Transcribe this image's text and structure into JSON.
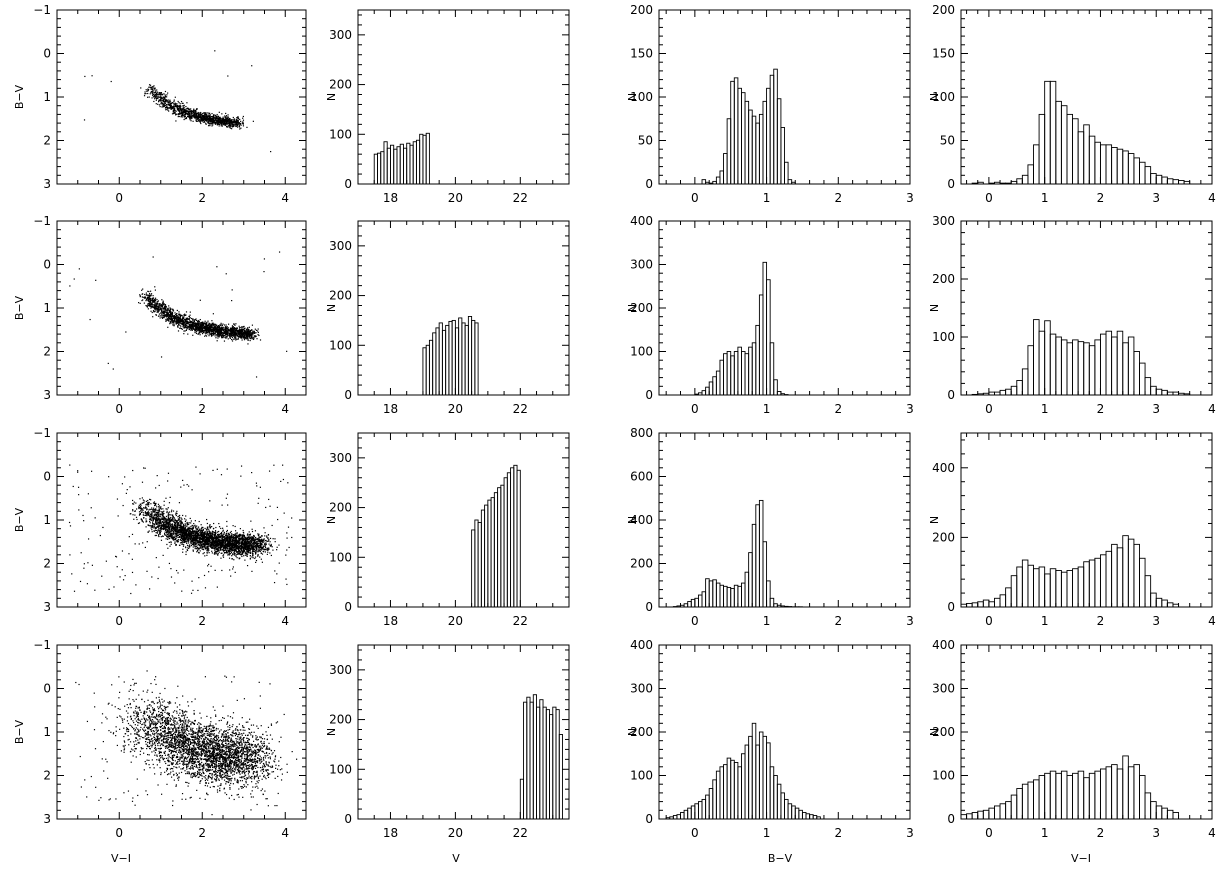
{
  "figure": {
    "column_xlabels": [
      "V−I",
      "V",
      "B−V",
      "V−I"
    ],
    "row_ylabels": [
      "B−V",
      "N",
      "N",
      "N"
    ]
  },
  "chart_data": [
    {
      "type": "scatter",
      "row": 1,
      "col": 1,
      "xlabel": "",
      "ylabel": "B−V",
      "xlim": [
        -1.5,
        4.5
      ],
      "ylim": [
        3,
        -1
      ],
      "xticks": [
        0,
        2,
        4
      ],
      "yticks": [
        -1,
        0,
        1,
        2,
        3
      ],
      "points_desc": "narrow diagonal sequence from (0.7,0.6) to (2.9,1.6)",
      "n_points": 1200,
      "seed": 11
    },
    {
      "type": "bar",
      "row": 1,
      "col": 2,
      "xlabel": "",
      "ylabel": "N",
      "xlim": [
        17,
        23.5
      ],
      "ylim": [
        0,
        350
      ],
      "xticks": [
        18,
        20,
        22
      ],
      "yticks": [
        0,
        100,
        200,
        300
      ],
      "bin_start": 17.5,
      "bin_width": 0.1,
      "values": [
        60,
        62,
        65,
        85,
        72,
        78,
        70,
        75,
        80,
        72,
        82,
        78,
        85,
        88,
        100,
        98,
        102
      ]
    },
    {
      "type": "bar",
      "row": 1,
      "col": 3,
      "xlabel": "",
      "ylabel": "N",
      "xlim": [
        -0.5,
        3
      ],
      "ylim": [
        0,
        200
      ],
      "xticks": [
        0,
        1,
        2,
        3
      ],
      "yticks": [
        0,
        50,
        100,
        150,
        200
      ],
      "bin_start": 0.1,
      "bin_width": 0.05,
      "values": [
        5,
        2,
        1,
        3,
        8,
        15,
        35,
        75,
        118,
        122,
        110,
        105,
        95,
        85,
        78,
        70,
        80,
        95,
        110,
        125,
        132,
        98,
        65,
        25,
        5,
        2
      ]
    },
    {
      "type": "bar",
      "row": 1,
      "col": 4,
      "xlabel": "",
      "ylabel": "N",
      "xlim": [
        -0.5,
        4
      ],
      "ylim": [
        0,
        200
      ],
      "xticks": [
        0,
        1,
        2,
        3,
        4
      ],
      "yticks": [
        0,
        50,
        100,
        150,
        200
      ],
      "bin_start": -0.3,
      "bin_width": 0.1,
      "values": [
        1,
        2,
        0,
        1,
        2,
        1,
        1,
        3,
        6,
        10,
        22,
        45,
        80,
        118,
        118,
        95,
        90,
        80,
        75,
        60,
        68,
        55,
        48,
        45,
        45,
        42,
        40,
        38,
        35,
        30,
        25,
        20,
        12,
        10,
        8,
        6,
        5,
        4,
        3
      ]
    },
    {
      "type": "scatter",
      "row": 2,
      "col": 1,
      "xlabel": "",
      "ylabel": "B−V",
      "xlim": [
        -1.5,
        4.5
      ],
      "ylim": [
        3,
        -1
      ],
      "xticks": [
        0,
        2,
        4
      ],
      "yticks": [
        -1,
        0,
        1,
        2,
        3
      ],
      "points_desc": "diagonal sequence from (0.6,0.5) to (3.2,1.7)",
      "n_points": 2000,
      "seed": 22
    },
    {
      "type": "bar",
      "row": 2,
      "col": 2,
      "xlabel": "",
      "ylabel": "N",
      "xlim": [
        17,
        23.5
      ],
      "ylim": [
        0,
        350
      ],
      "xticks": [
        18,
        20,
        22
      ],
      "yticks": [
        0,
        100,
        200,
        300
      ],
      "bin_start": 19,
      "bin_width": 0.1,
      "values": [
        95,
        100,
        110,
        125,
        135,
        145,
        130,
        140,
        148,
        150,
        135,
        155,
        145,
        140,
        158,
        150,
        145
      ]
    },
    {
      "type": "bar",
      "row": 2,
      "col": 3,
      "xlabel": "",
      "ylabel": "N",
      "xlim": [
        -0.5,
        3
      ],
      "ylim": [
        0,
        400
      ],
      "xticks": [
        0,
        1,
        2,
        3
      ],
      "yticks": [
        0,
        100,
        200,
        300,
        400
      ],
      "bin_start": 0,
      "bin_width": 0.05,
      "values": [
        2,
        5,
        10,
        18,
        30,
        42,
        55,
        80,
        95,
        100,
        90,
        100,
        110,
        100,
        95,
        110,
        120,
        160,
        230,
        305,
        265,
        120,
        35,
        8,
        3,
        1
      ]
    },
    {
      "type": "bar",
      "row": 2,
      "col": 4,
      "xlabel": "",
      "ylabel": "N",
      "xlim": [
        -0.5,
        4
      ],
      "ylim": [
        0,
        300
      ],
      "xticks": [
        0,
        1,
        2,
        3,
        4
      ],
      "yticks": [
        0,
        100,
        200,
        300
      ],
      "bin_start": -0.3,
      "bin_width": 0.1,
      "values": [
        1,
        2,
        3,
        5,
        5,
        8,
        10,
        15,
        25,
        45,
        85,
        130,
        110,
        128,
        105,
        100,
        95,
        90,
        95,
        92,
        90,
        85,
        95,
        105,
        110,
        100,
        110,
        90,
        100,
        75,
        55,
        30,
        15,
        10,
        8,
        5,
        5,
        3,
        2
      ]
    },
    {
      "type": "scatter",
      "row": 3,
      "col": 1,
      "xlabel": "",
      "ylabel": "B−V",
      "xlim": [
        -1.5,
        4.5
      ],
      "ylim": [
        3,
        -1
      ],
      "xticks": [
        0,
        2,
        4
      ],
      "yticks": [
        -1,
        0,
        1,
        2,
        3
      ],
      "points_desc": "broad diagonal sequence from (0.7,0.5) to (3.5,1.7) with scattered field stars",
      "n_points": 3500,
      "seed": 33
    },
    {
      "type": "bar",
      "row": 3,
      "col": 2,
      "xlabel": "",
      "ylabel": "N",
      "xlim": [
        17,
        23.5
      ],
      "ylim": [
        0,
        350
      ],
      "xticks": [
        18,
        20,
        22
      ],
      "yticks": [
        0,
        100,
        200,
        300
      ],
      "bin_start": 20.5,
      "bin_width": 0.1,
      "values": [
        155,
        175,
        170,
        195,
        205,
        215,
        220,
        230,
        240,
        245,
        260,
        270,
        280,
        285,
        275
      ]
    },
    {
      "type": "bar",
      "row": 3,
      "col": 3,
      "xlabel": "",
      "ylabel": "N",
      "xlim": [
        -0.5,
        3
      ],
      "ylim": [
        0,
        800
      ],
      "xticks": [
        0,
        1,
        2,
        3
      ],
      "yticks": [
        0,
        200,
        400,
        600,
        800
      ],
      "bin_start": -0.3,
      "bin_width": 0.05,
      "values": [
        2,
        5,
        8,
        15,
        25,
        35,
        40,
        55,
        70,
        130,
        120,
        125,
        110,
        100,
        95,
        90,
        85,
        100,
        95,
        110,
        160,
        250,
        380,
        470,
        490,
        300,
        120,
        40,
        15,
        8,
        5,
        3,
        2,
        1,
        1,
        1
      ]
    },
    {
      "type": "bar",
      "row": 3,
      "col": 4,
      "xlabel": "",
      "ylabel": "N",
      "xlim": [
        -0.5,
        4
      ],
      "ylim": [
        0,
        500
      ],
      "xticks": [
        0,
        1,
        2,
        3,
        4
      ],
      "yticks": [
        0,
        200,
        400
      ],
      "bin_start": -0.5,
      "bin_width": 0.1,
      "values": [
        8,
        10,
        12,
        15,
        20,
        15,
        25,
        35,
        55,
        90,
        115,
        135,
        120,
        110,
        115,
        95,
        110,
        105,
        100,
        105,
        110,
        115,
        130,
        135,
        140,
        150,
        160,
        180,
        170,
        205,
        195,
        180,
        140,
        90,
        40,
        25,
        20,
        12,
        8
      ]
    },
    {
      "type": "scatter",
      "row": 4,
      "col": 1,
      "xlabel": "V−I",
      "ylabel": "B−V",
      "xlim": [
        -1.5,
        4.5
      ],
      "ylim": [
        3,
        -1
      ],
      "xticks": [
        0,
        2,
        4
      ],
      "yticks": [
        -1,
        0,
        1,
        2,
        3
      ],
      "points_desc": "very broad diffuse cloud from (1,0.7) to (3,1.6)",
      "n_points": 3500,
      "seed": 44
    },
    {
      "type": "bar",
      "row": 4,
      "col": 2,
      "xlabel": "V",
      "ylabel": "N",
      "xlim": [
        17,
        23.5
      ],
      "ylim": [
        0,
        350
      ],
      "xticks": [
        18,
        20,
        22
      ],
      "yticks": [
        0,
        100,
        200,
        300
      ],
      "bin_start": 22,
      "bin_width": 0.1,
      "values": [
        80,
        235,
        245,
        235,
        250,
        225,
        240,
        225,
        220,
        210,
        225,
        220,
        170
      ]
    },
    {
      "type": "bar",
      "row": 4,
      "col": 3,
      "xlabel": "B−V",
      "ylabel": "N",
      "xlim": [
        -0.5,
        3
      ],
      "ylim": [
        0,
        400
      ],
      "xticks": [
        0,
        1,
        2,
        3
      ],
      "yticks": [
        0,
        100,
        200,
        300,
        400
      ],
      "bin_start": -0.4,
      "bin_width": 0.05,
      "values": [
        3,
        5,
        8,
        10,
        15,
        20,
        25,
        30,
        35,
        40,
        45,
        55,
        70,
        90,
        110,
        120,
        125,
        140,
        135,
        130,
        120,
        150,
        170,
        190,
        220,
        170,
        200,
        190,
        175,
        120,
        100,
        80,
        60,
        45,
        35,
        30,
        25,
        20,
        15,
        12,
        10,
        8,
        5
      ]
    },
    {
      "type": "bar",
      "row": 4,
      "col": 4,
      "xlabel": "V−I",
      "ylabel": "N",
      "xlim": [
        -0.5,
        4
      ],
      "ylim": [
        0,
        400
      ],
      "xticks": [
        0,
        1,
        2,
        3,
        4
      ],
      "yticks": [
        0,
        100,
        200,
        300,
        400
      ],
      "bin_start": -0.5,
      "bin_width": 0.1,
      "values": [
        10,
        12,
        15,
        18,
        20,
        25,
        30,
        35,
        40,
        55,
        70,
        80,
        85,
        90,
        100,
        105,
        110,
        105,
        110,
        100,
        105,
        110,
        95,
        105,
        110,
        115,
        120,
        125,
        115,
        145,
        120,
        125,
        100,
        60,
        40,
        30,
        25,
        20,
        15
      ]
    }
  ]
}
